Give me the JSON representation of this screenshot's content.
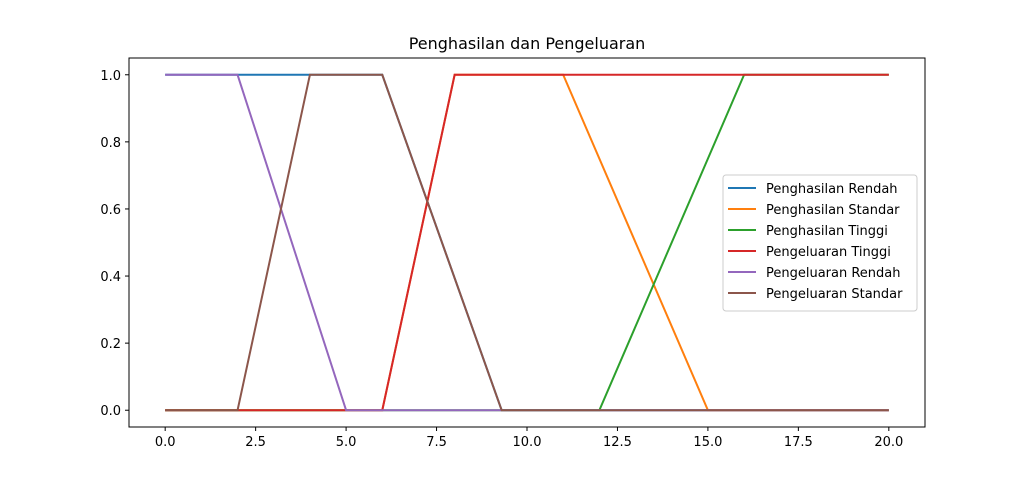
{
  "chart_data": {
    "type": "line",
    "title": "Penghasilan dan Pengeluaran",
    "xlabel": "",
    "ylabel": "",
    "xlim": [
      -1,
      21
    ],
    "ylim": [
      -0.05,
      1.05
    ],
    "xticks": [
      0,
      2.5,
      5,
      7.5,
      10,
      12.5,
      15,
      17.5,
      20
    ],
    "xtick_labels": [
      "0.0",
      "2.5",
      "5.0",
      "7.5",
      "10.0",
      "12.5",
      "15.0",
      "17.5",
      "20.0"
    ],
    "yticks": [
      0,
      0.2,
      0.4,
      0.6,
      0.8,
      1.0
    ],
    "ytick_labels": [
      "0.0",
      "0.2",
      "0.4",
      "0.6",
      "0.8",
      "1.0"
    ],
    "grid": false,
    "legend_position": "center-right",
    "series": [
      {
        "name": "Penghasilan Rendah",
        "color": "#1f77b4",
        "x": [
          0,
          6,
          9.3,
          20
        ],
        "y": [
          1,
          1,
          0,
          0
        ]
      },
      {
        "name": "Penghasilan Standar",
        "color": "#ff7f0e",
        "x": [
          0,
          6,
          8,
          11,
          15,
          20
        ],
        "y": [
          0,
          0,
          1,
          1,
          0,
          0
        ]
      },
      {
        "name": "Penghasilan Tinggi",
        "color": "#2ca02c",
        "x": [
          0,
          12,
          16,
          20
        ],
        "y": [
          0,
          0,
          1,
          1
        ]
      },
      {
        "name": "Pengeluaran Tinggi",
        "color": "#d62728",
        "x": [
          0,
          6,
          8,
          20
        ],
        "y": [
          0,
          0,
          1,
          1
        ]
      },
      {
        "name": "Pengeluaran Rendah",
        "color": "#9467bd",
        "x": [
          0,
          2,
          5,
          20
        ],
        "y": [
          1,
          1,
          0,
          0
        ]
      },
      {
        "name": "Pengeluaran Standar",
        "color": "#8c564b",
        "x": [
          0,
          2,
          4,
          6,
          9.3,
          20
        ],
        "y": [
          0,
          0,
          1,
          1,
          0,
          0
        ]
      }
    ]
  }
}
